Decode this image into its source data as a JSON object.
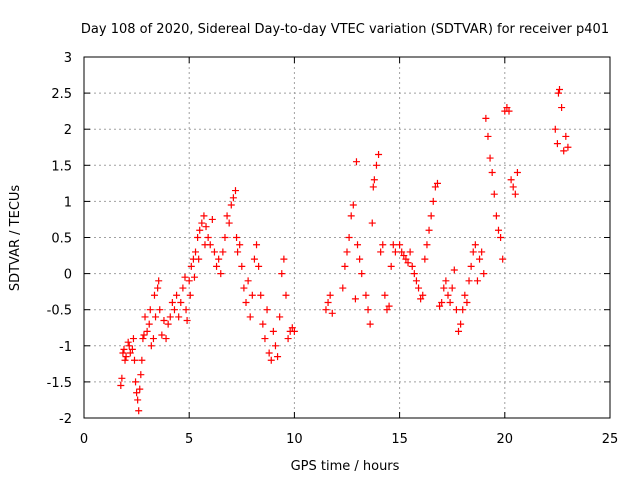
{
  "colors": {
    "series": "#ff0000",
    "axis": "#000000",
    "grid": "#a0a0a0",
    "background": "#ffffff"
  },
  "chart_data": {
    "type": "scatter",
    "title": "Day 108 of 2020, Sidereal Day-to-day VTEC variation (SDTVAR) for receiver p401",
    "xlabel": "GPS time / hours",
    "ylabel": "SDTVAR / TECUs",
    "xlim": [
      0,
      25
    ],
    "ylim": [
      -2,
      3
    ],
    "xticks": [
      0,
      5,
      10,
      15,
      20,
      25
    ],
    "yticks": [
      -2,
      -1.5,
      -1,
      -0.5,
      0,
      0.5,
      1,
      1.5,
      2,
      2.5,
      3
    ],
    "grid": true,
    "marker": "+",
    "series": [
      {
        "name": "SDTVAR",
        "points": [
          [
            1.75,
            -1.55
          ],
          [
            1.8,
            -1.45
          ],
          [
            1.85,
            -1.1
          ],
          [
            1.9,
            -1.05
          ],
          [
            1.95,
            -1.2
          ],
          [
            2.0,
            -1.15
          ],
          [
            2.1,
            -0.95
          ],
          [
            2.15,
            -1.0
          ],
          [
            2.2,
            -1.1
          ],
          [
            2.3,
            -1.05
          ],
          [
            2.35,
            -0.9
          ],
          [
            2.4,
            -1.2
          ],
          [
            2.45,
            -1.5
          ],
          [
            2.5,
            -1.65
          ],
          [
            2.55,
            -1.75
          ],
          [
            2.6,
            -1.9
          ],
          [
            2.65,
            -1.6
          ],
          [
            2.7,
            -1.4
          ],
          [
            2.75,
            -1.2
          ],
          [
            2.8,
            -0.9
          ],
          [
            2.85,
            -0.85
          ],
          [
            2.9,
            -0.6
          ],
          [
            3.0,
            -0.8
          ],
          [
            3.1,
            -0.7
          ],
          [
            3.15,
            -0.5
          ],
          [
            3.2,
            -1.0
          ],
          [
            3.3,
            -0.9
          ],
          [
            3.35,
            -0.3
          ],
          [
            3.4,
            -0.6
          ],
          [
            3.5,
            -0.2
          ],
          [
            3.55,
            -0.1
          ],
          [
            3.6,
            -0.5
          ],
          [
            3.7,
            -0.85
          ],
          [
            3.8,
            -0.65
          ],
          [
            3.9,
            -0.9
          ],
          [
            4.0,
            -0.7
          ],
          [
            4.1,
            -0.6
          ],
          [
            4.2,
            -0.4
          ],
          [
            4.3,
            -0.5
          ],
          [
            4.4,
            -0.3
          ],
          [
            4.5,
            -0.6
          ],
          [
            4.6,
            -0.4
          ],
          [
            4.7,
            -0.2
          ],
          [
            4.8,
            -0.05
          ],
          [
            4.85,
            -0.5
          ],
          [
            4.9,
            -0.65
          ],
          [
            5.0,
            -0.1
          ],
          [
            5.05,
            -0.3
          ],
          [
            5.1,
            0.1
          ],
          [
            5.2,
            0.2
          ],
          [
            5.25,
            -0.05
          ],
          [
            5.3,
            0.3
          ],
          [
            5.4,
            0.5
          ],
          [
            5.45,
            0.2
          ],
          [
            5.5,
            0.6
          ],
          [
            5.6,
            0.7
          ],
          [
            5.7,
            0.8
          ],
          [
            5.75,
            0.4
          ],
          [
            5.8,
            0.65
          ],
          [
            5.9,
            0.5
          ],
          [
            6.0,
            0.4
          ],
          [
            6.1,
            0.75
          ],
          [
            6.2,
            0.3
          ],
          [
            6.3,
            0.1
          ],
          [
            6.4,
            0.2
          ],
          [
            6.5,
            0.0
          ],
          [
            6.6,
            0.3
          ],
          [
            6.7,
            0.5
          ],
          [
            6.8,
            0.8
          ],
          [
            6.9,
            0.7
          ],
          [
            7.0,
            0.95
          ],
          [
            7.1,
            1.05
          ],
          [
            7.2,
            1.15
          ],
          [
            7.25,
            0.5
          ],
          [
            7.3,
            0.3
          ],
          [
            7.4,
            0.4
          ],
          [
            7.5,
            0.1
          ],
          [
            7.6,
            -0.2
          ],
          [
            7.7,
            -0.4
          ],
          [
            7.8,
            -0.1
          ],
          [
            7.9,
            -0.6
          ],
          [
            8.0,
            -0.3
          ],
          [
            8.1,
            0.2
          ],
          [
            8.2,
            0.4
          ],
          [
            8.3,
            0.1
          ],
          [
            8.4,
            -0.3
          ],
          [
            8.5,
            -0.7
          ],
          [
            8.6,
            -0.9
          ],
          [
            8.7,
            -0.5
          ],
          [
            8.8,
            -1.1
          ],
          [
            8.9,
            -1.2
          ],
          [
            9.0,
            -0.8
          ],
          [
            9.1,
            -1.0
          ],
          [
            9.2,
            -1.15
          ],
          [
            9.3,
            -0.6
          ],
          [
            9.4,
            0.0
          ],
          [
            9.5,
            0.2
          ],
          [
            9.6,
            -0.3
          ],
          [
            9.7,
            -0.9
          ],
          [
            9.8,
            -0.8
          ],
          [
            9.9,
            -0.75
          ],
          [
            10.0,
            -0.8
          ],
          [
            11.5,
            -0.5
          ],
          [
            11.6,
            -0.4
          ],
          [
            11.7,
            -0.3
          ],
          [
            11.8,
            -0.55
          ],
          [
            12.3,
            -0.2
          ],
          [
            12.4,
            0.1
          ],
          [
            12.5,
            0.3
          ],
          [
            12.6,
            0.5
          ],
          [
            12.7,
            0.8
          ],
          [
            12.8,
            0.95
          ],
          [
            12.9,
            -0.35
          ],
          [
            12.95,
            1.55
          ],
          [
            13.0,
            0.4
          ],
          [
            13.1,
            0.2
          ],
          [
            13.2,
            0.0
          ],
          [
            13.4,
            -0.3
          ],
          [
            13.5,
            -0.5
          ],
          [
            13.6,
            -0.7
          ],
          [
            13.7,
            0.7
          ],
          [
            13.75,
            1.2
          ],
          [
            13.8,
            1.3
          ],
          [
            13.9,
            1.5
          ],
          [
            14.0,
            1.65
          ],
          [
            14.1,
            0.3
          ],
          [
            14.2,
            0.4
          ],
          [
            14.3,
            -0.3
          ],
          [
            14.4,
            -0.5
          ],
          [
            14.5,
            -0.45
          ],
          [
            14.6,
            0.1
          ],
          [
            14.7,
            0.4
          ],
          [
            14.8,
            0.3
          ],
          [
            15.0,
            0.4
          ],
          [
            15.1,
            0.3
          ],
          [
            15.2,
            0.25
          ],
          [
            15.3,
            0.2
          ],
          [
            15.4,
            0.15
          ],
          [
            15.5,
            0.3
          ],
          [
            15.6,
            0.1
          ],
          [
            15.7,
            0.0
          ],
          [
            15.8,
            -0.1
          ],
          [
            15.9,
            -0.2
          ],
          [
            16.0,
            -0.35
          ],
          [
            16.1,
            -0.3
          ],
          [
            16.2,
            0.2
          ],
          [
            16.3,
            0.4
          ],
          [
            16.4,
            0.6
          ],
          [
            16.5,
            0.8
          ],
          [
            16.6,
            1.0
          ],
          [
            16.7,
            1.2
          ],
          [
            16.8,
            1.25
          ],
          [
            16.9,
            -0.45
          ],
          [
            17.0,
            -0.4
          ],
          [
            17.1,
            -0.2
          ],
          [
            17.2,
            -0.1
          ],
          [
            17.3,
            -0.3
          ],
          [
            17.4,
            -0.4
          ],
          [
            17.5,
            -0.2
          ],
          [
            17.6,
            0.05
          ],
          [
            17.7,
            -0.5
          ],
          [
            17.8,
            -0.8
          ],
          [
            17.9,
            -0.7
          ],
          [
            18.0,
            -0.5
          ],
          [
            18.1,
            -0.3
          ],
          [
            18.2,
            -0.4
          ],
          [
            18.3,
            -0.1
          ],
          [
            18.4,
            0.1
          ],
          [
            18.5,
            0.3
          ],
          [
            18.6,
            0.4
          ],
          [
            18.7,
            -0.1
          ],
          [
            18.8,
            0.2
          ],
          [
            18.9,
            0.3
          ],
          [
            19.0,
            0.0
          ],
          [
            19.1,
            2.15
          ],
          [
            19.2,
            1.9
          ],
          [
            19.3,
            1.6
          ],
          [
            19.4,
            1.4
          ],
          [
            19.5,
            1.1
          ],
          [
            19.6,
            0.8
          ],
          [
            19.7,
            0.6
          ],
          [
            19.8,
            0.5
          ],
          [
            19.9,
            0.2
          ],
          [
            20.0,
            2.25
          ],
          [
            20.1,
            2.3
          ],
          [
            20.2,
            2.25
          ],
          [
            20.3,
            1.3
          ],
          [
            20.4,
            1.2
          ],
          [
            20.5,
            1.1
          ],
          [
            20.6,
            1.4
          ],
          [
            22.4,
            2.0
          ],
          [
            22.5,
            1.8
          ],
          [
            22.55,
            2.5
          ],
          [
            22.6,
            2.55
          ],
          [
            22.7,
            2.3
          ],
          [
            22.8,
            1.7
          ],
          [
            22.9,
            1.9
          ],
          [
            23.0,
            1.75
          ]
        ]
      }
    ]
  }
}
